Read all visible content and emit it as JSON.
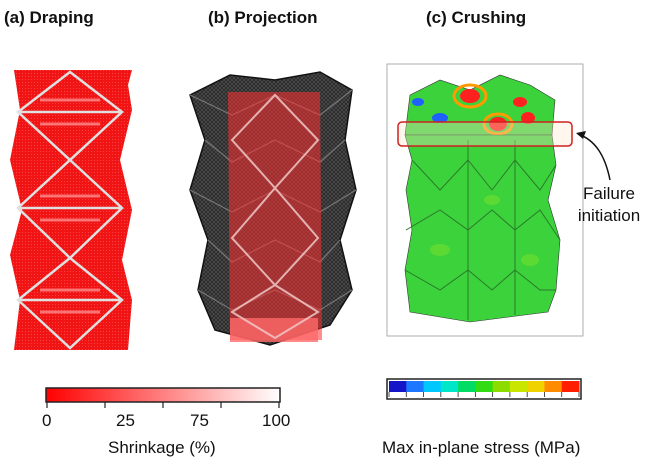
{
  "panels": {
    "a": {
      "title": "(a) Draping"
    },
    "b": {
      "title": "(b) Projection"
    },
    "c": {
      "title": "(c) Crushing"
    }
  },
  "annotation": {
    "line1": "Failure",
    "line2": "initiation"
  },
  "shrinkage_bar": {
    "label": "Shrinkage (%)",
    "ticks": [
      "0",
      "25",
      "75",
      "100"
    ],
    "colors": [
      "#ff0000",
      "#ffffff"
    ]
  },
  "stress_bar": {
    "label": "Max in-plane stress (MPa)",
    "colors": [
      "#1414c8",
      "#1e78ff",
      "#00c8ff",
      "#00e6c8",
      "#00dc64",
      "#32dc14",
      "#8cdc00",
      "#c8e600",
      "#f0d200",
      "#ff8c00",
      "#ff1e00"
    ]
  }
}
